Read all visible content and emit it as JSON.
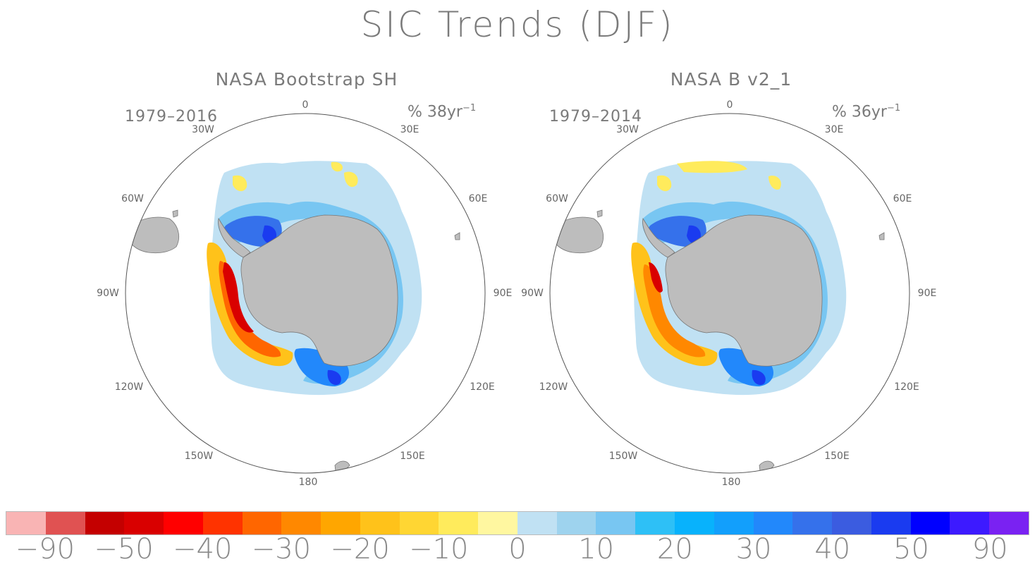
{
  "title": "SIC Trends (DJF)",
  "panels": [
    {
      "title": "NASA Bootstrap SH",
      "period": "1979–2016",
      "units_main": "% 38yr",
      "units_sup": "−1"
    },
    {
      "title": "NASA B v2_1",
      "period": "1979–2014",
      "units_main": "% 36yr",
      "units_sup": "−1"
    }
  ],
  "longitude_labels": [
    "0",
    "30E",
    "60E",
    "90E",
    "120E",
    "150E",
    "180",
    "150W",
    "120W",
    "90W",
    "60W",
    "30W"
  ],
  "colorbar": {
    "colors": [
      "#f9b4b4",
      "#e05252",
      "#c40000",
      "#d90000",
      "#ff0000",
      "#ff3300",
      "#ff6600",
      "#ff8800",
      "#ffa600",
      "#ffc21a",
      "#ffd633",
      "#ffeb5c",
      "#fff7a0",
      "#c0e1f3",
      "#9ed3ee",
      "#78c6f2",
      "#2ec0f6",
      "#08b2fc",
      "#129ffc",
      "#2288fb",
      "#3571eb",
      "#3b5ce0",
      "#1a3bf0",
      "#0000ff",
      "#3d1aff",
      "#7a22f2"
    ],
    "tick_labels": [
      "−90",
      "−50",
      "−40",
      "−30",
      "−20",
      "−10",
      "0",
      "10",
      "20",
      "30",
      "40",
      "50",
      "90"
    ]
  }
}
